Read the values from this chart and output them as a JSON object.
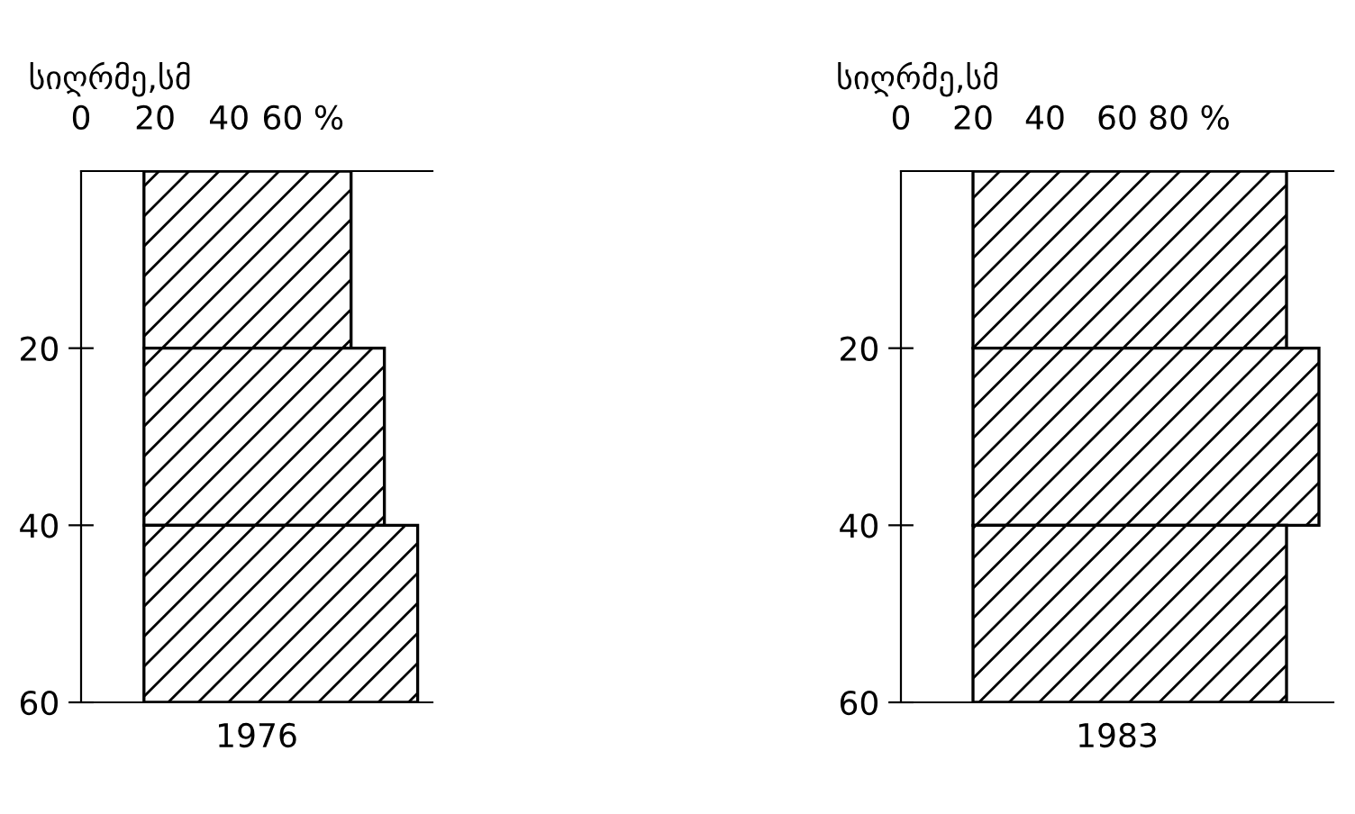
{
  "chart_data": [
    {
      "type": "bar",
      "orientation": "horizontal",
      "ylabel": "სიღრმე,სმ",
      "xlabel": "1976",
      "x": [
        10,
        30,
        50
      ],
      "series": [
        {
          "color": "#000000",
          "base": [
            17,
            17,
            17
          ],
          "values": [
            56,
            65,
            74
          ]
        }
      ],
      "xlim": [
        0,
        95
      ],
      "xticks": [
        0,
        20,
        40,
        {
          "value": 60,
          "label": "60 %"
        }
      ],
      "ylim": [
        60,
        0
      ],
      "yticks": [
        20,
        40,
        60
      ],
      "grid": false,
      "legend": false
    },
    {
      "type": "bar",
      "orientation": "horizontal",
      "ylabel": "სიღრმე,სმ",
      "xlabel": "1983",
      "x": [
        10,
        30,
        50
      ],
      "series": [
        {
          "color": "#000000",
          "base": [
            20,
            20,
            20
          ],
          "values": [
            87,
            96,
            87
          ]
        }
      ],
      "xlim": [
        0,
        120
      ],
      "xticks": [
        0,
        20,
        40,
        60,
        {
          "value": 80,
          "label": "80 %"
        }
      ],
      "ylim": [
        60,
        0
      ],
      "yticks": [
        20,
        40,
        60
      ],
      "grid": false,
      "legend": false
    }
  ]
}
